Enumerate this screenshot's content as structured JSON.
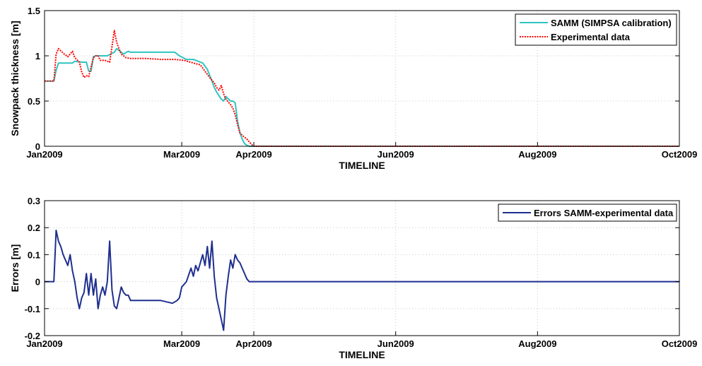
{
  "colors": {
    "samm": "#2ec4c0",
    "experimental": "#ff0000",
    "errors": "#1f2f8f",
    "grid": "#c8c8c8",
    "axis": "#000000"
  },
  "chart_data": [
    {
      "type": "line",
      "xlabel": "TIMELINE",
      "ylabel": "Snowpack thickness [m]",
      "ylim": [
        0,
        1.5
      ],
      "yticks": [
        0,
        0.5,
        1,
        1.5
      ],
      "ytick_labels": [
        "0",
        "0.5",
        "1",
        "1.5"
      ],
      "xlim": [
        "2009-01-01",
        "2009-10-01"
      ],
      "xticks": [
        "2009-01-01",
        "2009-03-01",
        "2009-04-01",
        "2009-06-01",
        "2009-08-01",
        "2009-10-01"
      ],
      "xtick_labels": [
        "Jan2009",
        "Mar2009",
        "Apr2009",
        "Jun2009",
        "Aug2009",
        "Oct2009"
      ],
      "grid": true,
      "legend_position": "top-right",
      "series": [
        {
          "name": "SAMM (SIMPSA calibration)",
          "color_key": "samm",
          "style": "solid",
          "x": [
            "2009-01-01",
            "2009-01-05",
            "2009-01-06",
            "2009-01-07",
            "2009-01-08",
            "2009-01-13",
            "2009-01-14",
            "2009-01-17",
            "2009-01-19",
            "2009-01-20",
            "2009-01-21",
            "2009-01-22",
            "2009-01-23",
            "2009-01-28",
            "2009-01-31",
            "2009-02-01",
            "2009-02-03",
            "2009-02-04",
            "2009-02-06",
            "2009-02-07",
            "2009-02-09",
            "2009-02-14",
            "2009-02-20",
            "2009-02-26",
            "2009-02-28",
            "2009-03-03",
            "2009-03-06",
            "2009-03-10",
            "2009-03-12",
            "2009-03-14",
            "2009-03-15",
            "2009-03-16",
            "2009-03-17",
            "2009-03-18",
            "2009-03-19",
            "2009-03-20",
            "2009-03-22",
            "2009-03-23",
            "2009-03-24",
            "2009-03-25",
            "2009-03-26",
            "2009-03-27",
            "2009-03-28",
            "2009-03-29",
            "2009-03-30",
            "2009-04-15",
            "2009-10-01"
          ],
          "y": [
            0.72,
            0.72,
            0.84,
            0.92,
            0.92,
            0.92,
            0.94,
            0.93,
            0.93,
            0.83,
            0.83,
            0.99,
            1.0,
            1.0,
            1.04,
            1.08,
            1.04,
            1.02,
            1.05,
            1.04,
            1.04,
            1.04,
            1.04,
            1.04,
            1.0,
            0.96,
            0.96,
            0.92,
            0.85,
            0.72,
            0.65,
            0.6,
            0.56,
            0.52,
            0.5,
            0.55,
            0.5,
            0.5,
            0.48,
            0.28,
            0.15,
            0.08,
            0.03,
            0.01,
            0.0,
            0.0,
            0.0
          ]
        },
        {
          "name": "Experimental data",
          "color_key": "experimental",
          "style": "dotted",
          "x": [
            "2009-01-01",
            "2009-01-05",
            "2009-01-06",
            "2009-01-07",
            "2009-01-09",
            "2009-01-11",
            "2009-01-13",
            "2009-01-14",
            "2009-01-16",
            "2009-01-17",
            "2009-01-18",
            "2009-01-19",
            "2009-01-20",
            "2009-01-22",
            "2009-01-23",
            "2009-01-24",
            "2009-01-25",
            "2009-01-27",
            "2009-01-29",
            "2009-01-30",
            "2009-01-31",
            "2009-02-01",
            "2009-02-02",
            "2009-02-03",
            "2009-02-05",
            "2009-02-07",
            "2009-02-09",
            "2009-02-14",
            "2009-02-20",
            "2009-02-26",
            "2009-03-02",
            "2009-03-06",
            "2009-03-09",
            "2009-03-11",
            "2009-03-13",
            "2009-03-15",
            "2009-03-16",
            "2009-03-17",
            "2009-03-18",
            "2009-03-19",
            "2009-03-20",
            "2009-03-21",
            "2009-03-22",
            "2009-03-23",
            "2009-03-24",
            "2009-03-25",
            "2009-03-26",
            "2009-03-27",
            "2009-03-28",
            "2009-03-29",
            "2009-03-30",
            "2009-03-31",
            "2009-04-01",
            "2009-10-01"
          ],
          "y": [
            0.72,
            0.72,
            1.02,
            1.08,
            1.03,
            0.99,
            1.05,
            0.98,
            0.93,
            0.82,
            0.76,
            0.78,
            0.77,
            0.98,
            1.0,
            1.0,
            0.95,
            0.95,
            0.93,
            1.1,
            1.28,
            1.15,
            1.08,
            1.02,
            0.98,
            0.97,
            0.97,
            0.97,
            0.96,
            0.96,
            0.95,
            0.92,
            0.9,
            0.83,
            0.76,
            0.7,
            0.65,
            0.62,
            0.67,
            0.58,
            0.52,
            0.49,
            0.46,
            0.42,
            0.35,
            0.24,
            0.15,
            0.12,
            0.1,
            0.08,
            0.05,
            0.02,
            0.0,
            0.0
          ]
        }
      ]
    },
    {
      "type": "line",
      "xlabel": "TIMELINE",
      "ylabel": "Errors [m]",
      "ylim": [
        -0.2,
        0.3
      ],
      "yticks": [
        -0.2,
        -0.1,
        0,
        0.1,
        0.2,
        0.3
      ],
      "ytick_labels": [
        "-0.2",
        "-0.1",
        "0",
        "0.1",
        "0.2",
        "0.3"
      ],
      "xlim": [
        "2009-01-01",
        "2009-10-01"
      ],
      "xticks": [
        "2009-01-01",
        "2009-03-01",
        "2009-04-01",
        "2009-06-01",
        "2009-08-01",
        "2009-10-01"
      ],
      "xtick_labels": [
        "Jan2009",
        "Mar2009",
        "Apr2009",
        "Jun2009",
        "Aug2009",
        "Oct2009"
      ],
      "grid": true,
      "legend_position": "top-right",
      "series": [
        {
          "name": "Errors SAMM-experimental data",
          "color_key": "errors",
          "style": "solid",
          "x": [
            "2009-01-01",
            "2009-01-05",
            "2009-01-06",
            "2009-01-07",
            "2009-01-08",
            "2009-01-09",
            "2009-01-11",
            "2009-01-12",
            "2009-01-13",
            "2009-01-14",
            "2009-01-15",
            "2009-01-16",
            "2009-01-17",
            "2009-01-18",
            "2009-01-19",
            "2009-01-20",
            "2009-01-21",
            "2009-01-22",
            "2009-01-23",
            "2009-01-24",
            "2009-01-25",
            "2009-01-26",
            "2009-01-27",
            "2009-01-28",
            "2009-01-29",
            "2009-01-30",
            "2009-01-31",
            "2009-02-01",
            "2009-02-02",
            "2009-02-03",
            "2009-02-04",
            "2009-02-05",
            "2009-02-06",
            "2009-02-07",
            "2009-02-09",
            "2009-02-13",
            "2009-02-20",
            "2009-02-25",
            "2009-02-27",
            "2009-02-28",
            "2009-03-01",
            "2009-03-03",
            "2009-03-05",
            "2009-03-06",
            "2009-03-07",
            "2009-03-08",
            "2009-03-09",
            "2009-03-10",
            "2009-03-11",
            "2009-03-12",
            "2009-03-13",
            "2009-03-14",
            "2009-03-15",
            "2009-03-16",
            "2009-03-17",
            "2009-03-18",
            "2009-03-19",
            "2009-03-20",
            "2009-03-21",
            "2009-03-22",
            "2009-03-23",
            "2009-03-24",
            "2009-03-25",
            "2009-03-26",
            "2009-03-27",
            "2009-03-28",
            "2009-03-29",
            "2009-03-30",
            "2009-03-31",
            "2009-04-01",
            "2009-10-01"
          ],
          "y": [
            0.0,
            0.0,
            0.19,
            0.15,
            0.13,
            0.1,
            0.06,
            0.1,
            0.04,
            0.0,
            -0.06,
            -0.1,
            -0.06,
            -0.04,
            0.03,
            -0.05,
            0.03,
            -0.05,
            0.01,
            -0.1,
            -0.05,
            -0.02,
            -0.05,
            0.0,
            0.15,
            -0.03,
            -0.09,
            -0.1,
            -0.06,
            -0.02,
            -0.04,
            -0.05,
            -0.05,
            -0.07,
            -0.07,
            -0.07,
            -0.07,
            -0.08,
            -0.07,
            -0.06,
            -0.02,
            0.0,
            0.05,
            0.02,
            0.06,
            0.04,
            0.07,
            0.1,
            0.06,
            0.13,
            0.05,
            0.15,
            0.02,
            -0.06,
            -0.1,
            -0.14,
            -0.18,
            -0.05,
            0.02,
            0.08,
            0.05,
            0.1,
            0.08,
            0.07,
            0.05,
            0.03,
            0.01,
            0.0,
            0.0,
            0.0,
            0.0
          ]
        }
      ]
    }
  ]
}
